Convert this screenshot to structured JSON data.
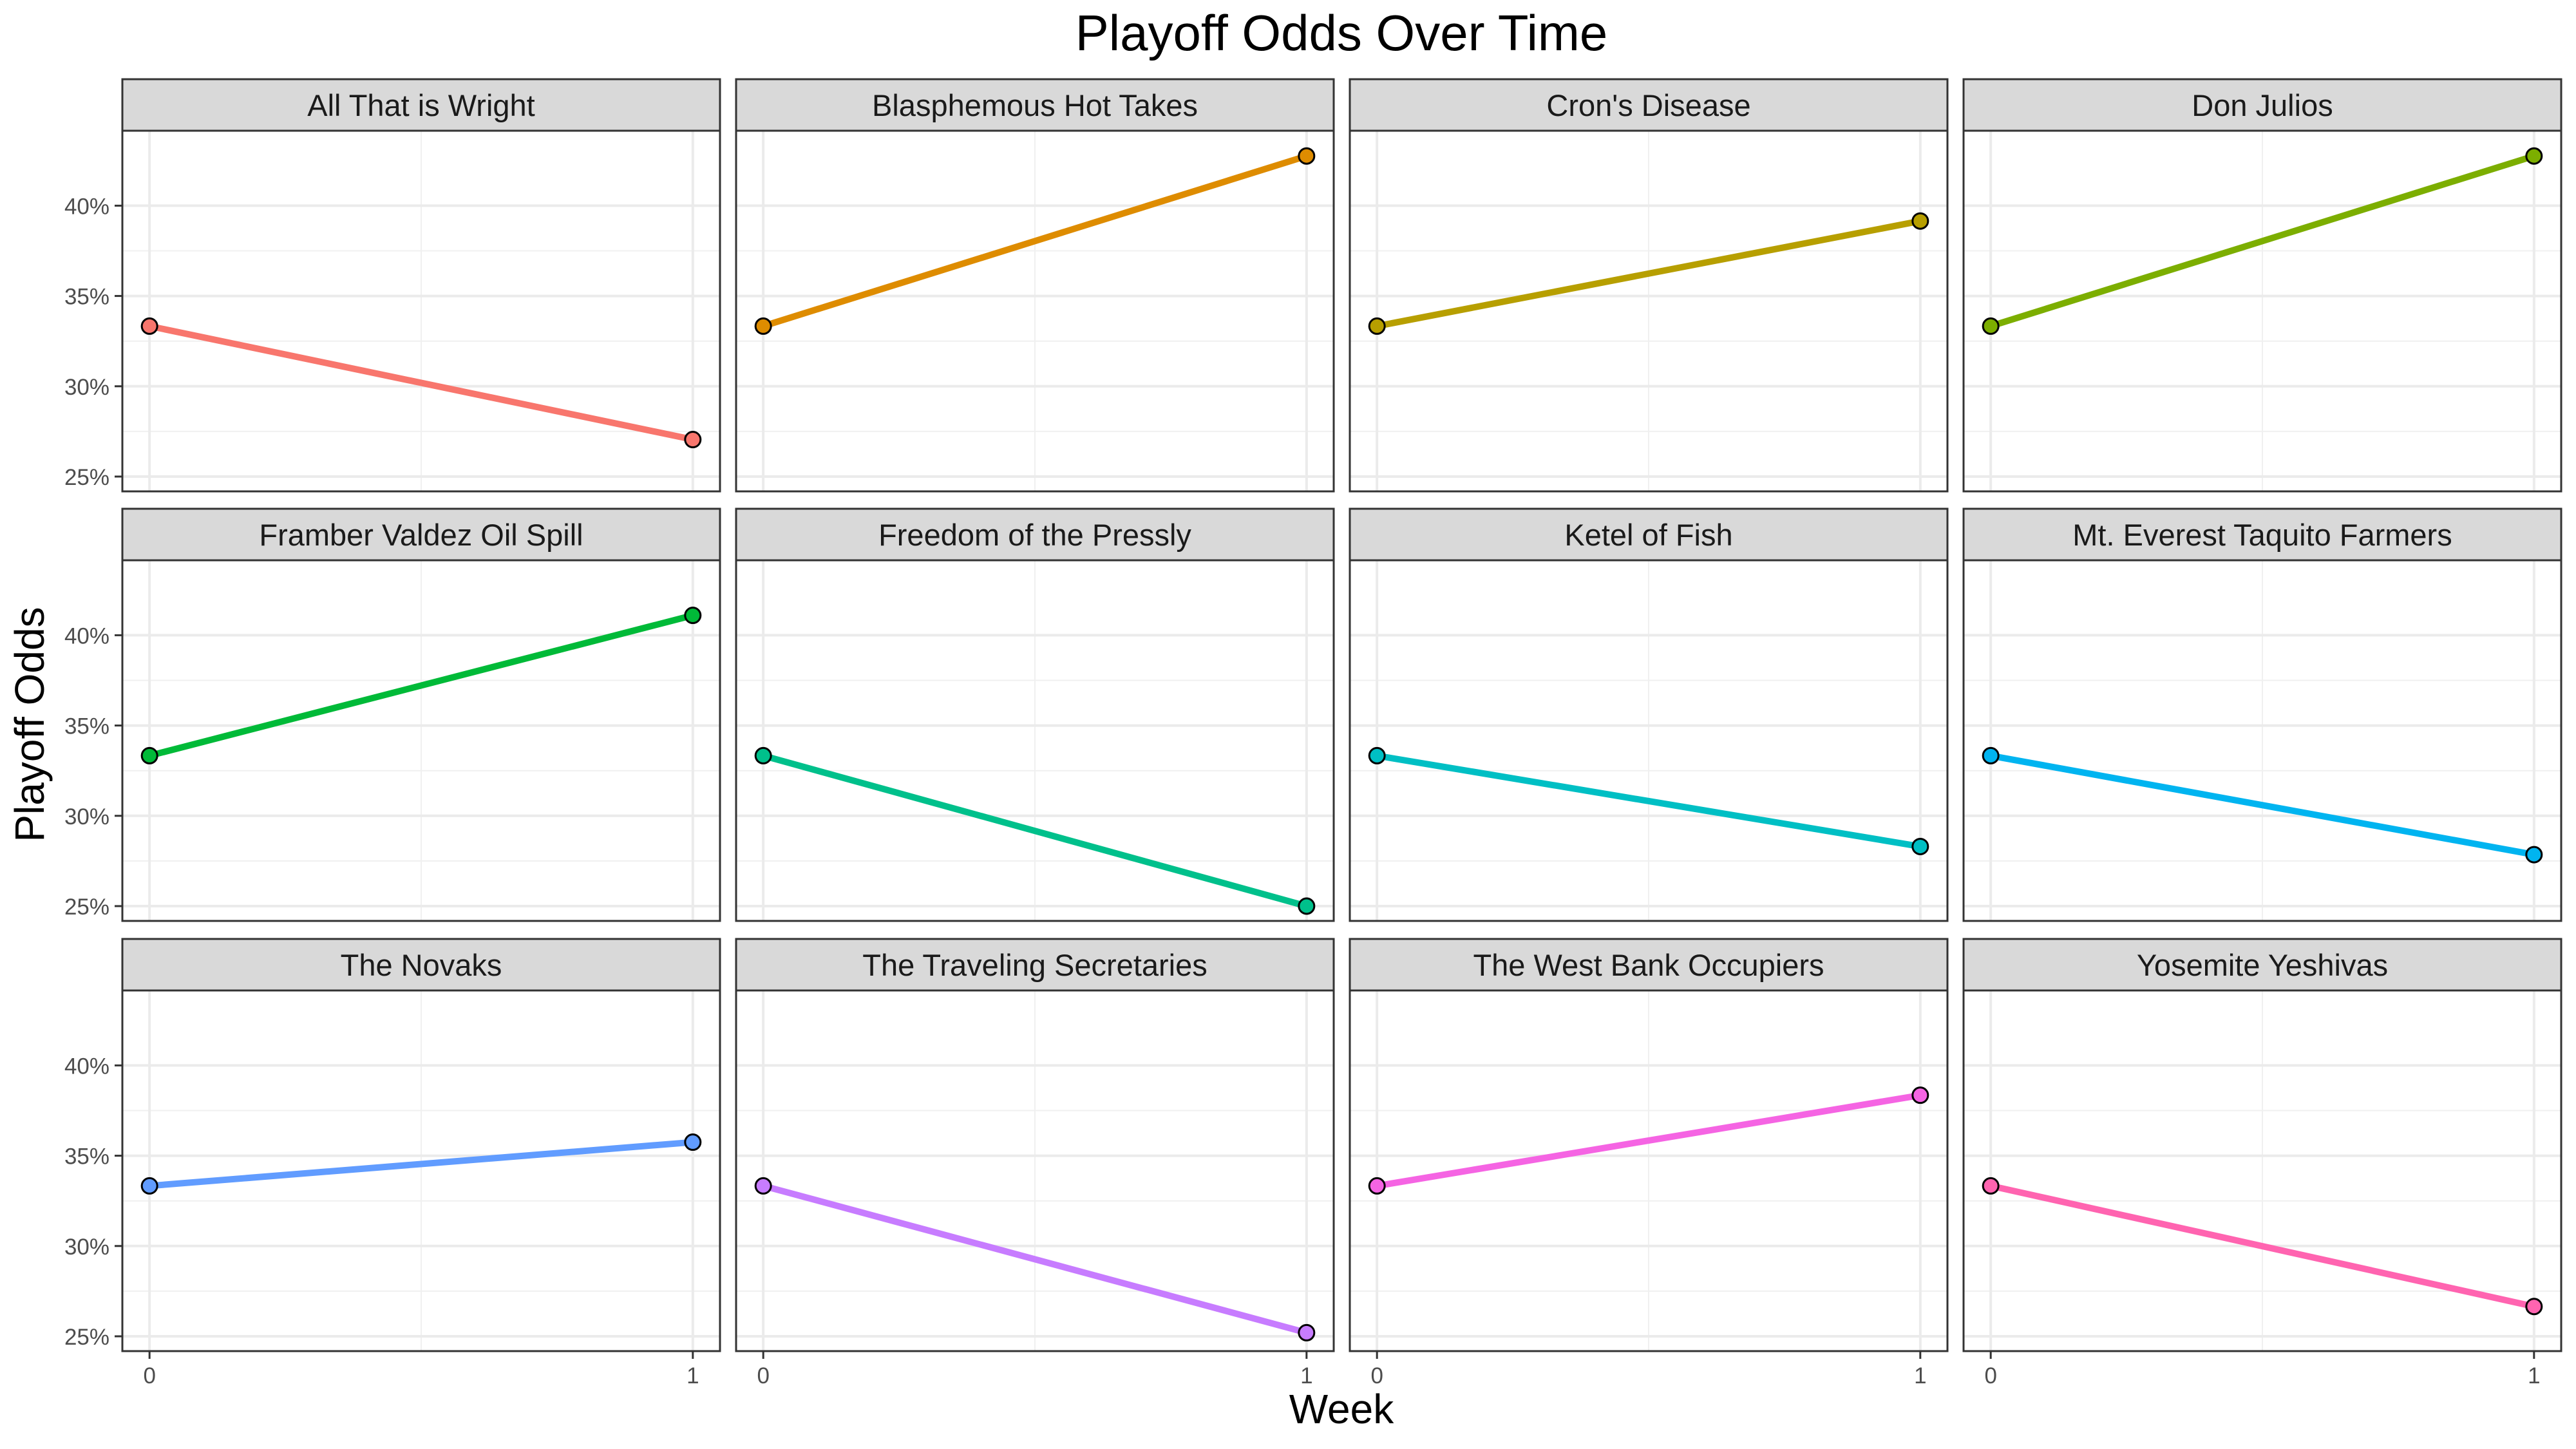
{
  "chart_data": {
    "type": "line",
    "title": "Playoff Odds Over Time",
    "xlabel": "Week",
    "ylabel": "Playoff Odds",
    "x": [
      0,
      1
    ],
    "x_tick_labels": [
      "0",
      "1"
    ],
    "y_ticks": [
      0.25,
      0.3,
      0.35,
      0.4
    ],
    "y_tick_labels": [
      "25%",
      "30%",
      "35%",
      "40%"
    ],
    "xlim": [
      -0.05,
      1.05
    ],
    "ylim": [
      0.2418,
      0.4415
    ],
    "grid": true,
    "facets": {
      "rows": 3,
      "cols": 4,
      "shared_axes": true
    },
    "series": [
      {
        "name": "All That is Wright",
        "color": "#F8766D",
        "values": [
          0.3333,
          0.2705
        ]
      },
      {
        "name": "Blasphemous Hot Takes",
        "color": "#DE8C00",
        "values": [
          0.3333,
          0.4275
        ]
      },
      {
        "name": "Cron's Disease",
        "color": "#B79F00",
        "values": [
          0.3333,
          0.3915
        ]
      },
      {
        "name": "Don Julios",
        "color": "#7CAE00",
        "values": [
          0.3333,
          0.4275
        ]
      },
      {
        "name": "Framber Valdez Oil Spill",
        "color": "#00BA38",
        "values": [
          0.3333,
          0.411
        ]
      },
      {
        "name": "Freedom of the Pressly",
        "color": "#00C08B",
        "values": [
          0.3333,
          0.25
        ]
      },
      {
        "name": "Ketel of Fish",
        "color": "#00BFC4",
        "values": [
          0.3333,
          0.283
        ]
      },
      {
        "name": "Mt. Everest Taquito Farmers",
        "color": "#00B4F0",
        "values": [
          0.3333,
          0.2785
        ]
      },
      {
        "name": "The Novaks",
        "color": "#619CFF",
        "values": [
          0.3333,
          0.3575
        ]
      },
      {
        "name": "The Traveling Secretaries",
        "color": "#C77CFF",
        "values": [
          0.3333,
          0.252
        ]
      },
      {
        "name": "The West Bank Occupiers",
        "color": "#F564E3",
        "values": [
          0.3333,
          0.3835
        ]
      },
      {
        "name": "Yosemite Yeshivas",
        "color": "#FF64B0",
        "values": [
          0.3333,
          0.2665
        ]
      }
    ]
  }
}
